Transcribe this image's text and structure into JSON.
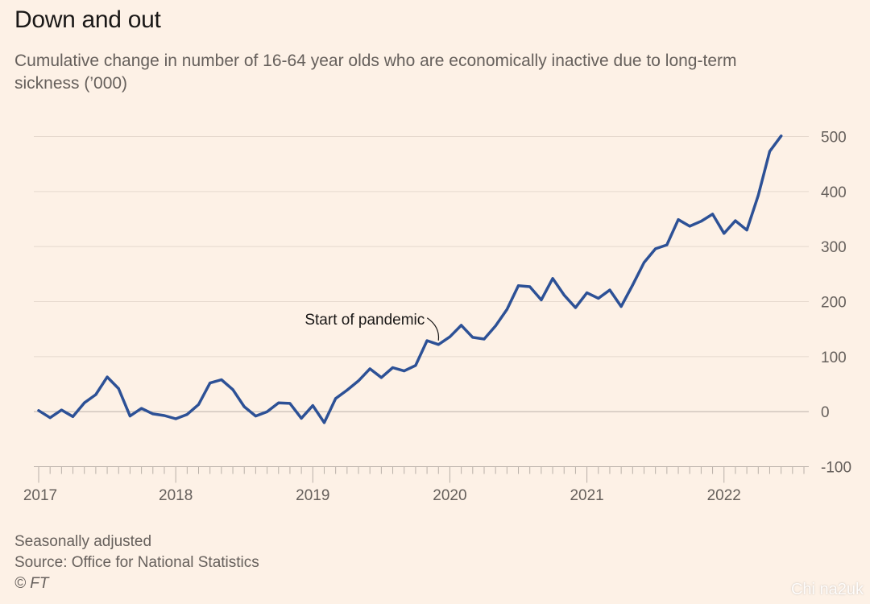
{
  "title": "Down and out",
  "subtitle": "Cumulative change in number of 16-64 year olds who are economically inactive due to long-term sickness (’000)",
  "footer": {
    "note": "Seasonally adjusted",
    "source": "Source: Office for National Statistics",
    "copyright": "© FT"
  },
  "watermark": "Chi na2uk",
  "colors": {
    "line": "#2d5196",
    "background": "#fdf1e6",
    "grid": "#e6d9ce",
    "axis": "#b9b0a8"
  },
  "chart_data": {
    "type": "line",
    "title": "Down and out",
    "subtitle": "Cumulative change in number of 16-64 year olds who are economically inactive due to long-term sickness (’000)",
    "xlabel": "",
    "ylabel": "",
    "ylim": [
      -100,
      500
    ],
    "yticks": [
      500,
      400,
      300,
      200,
      100,
      0,
      -100
    ],
    "xticks": [
      {
        "label": "2017",
        "x": 2017
      },
      {
        "label": "2018",
        "x": 2018
      },
      {
        "label": "2019",
        "x": 2019
      },
      {
        "label": "2020",
        "x": 2020
      },
      {
        "label": "2021",
        "x": 2021
      },
      {
        "label": "2022",
        "x": 2022
      }
    ],
    "xlim": [
      2017,
      2022.5833
    ],
    "grid": true,
    "y_axis_side": "right",
    "series": [
      {
        "values": [
          {
            "x": 2017.0,
            "y": 2
          },
          {
            "x": 2017.0833,
            "y": -11
          },
          {
            "x": 2017.1667,
            "y": 3
          },
          {
            "x": 2017.25,
            "y": -9
          },
          {
            "x": 2017.3333,
            "y": 16
          },
          {
            "x": 2017.4167,
            "y": 31
          },
          {
            "x": 2017.5,
            "y": 63
          },
          {
            "x": 2017.5833,
            "y": 42
          },
          {
            "x": 2017.6667,
            "y": -8
          },
          {
            "x": 2017.75,
            "y": 6
          },
          {
            "x": 2017.8333,
            "y": -4
          },
          {
            "x": 2017.9167,
            "y": -7
          },
          {
            "x": 2018.0,
            "y": -13
          },
          {
            "x": 2018.0833,
            "y": -5
          },
          {
            "x": 2018.1667,
            "y": 13
          },
          {
            "x": 2018.25,
            "y": 52
          },
          {
            "x": 2018.3333,
            "y": 58
          },
          {
            "x": 2018.4167,
            "y": 40
          },
          {
            "x": 2018.5,
            "y": 9
          },
          {
            "x": 2018.5833,
            "y": -8
          },
          {
            "x": 2018.6667,
            "y": 0
          },
          {
            "x": 2018.75,
            "y": 16
          },
          {
            "x": 2018.8333,
            "y": 15
          },
          {
            "x": 2018.9167,
            "y": -12
          },
          {
            "x": 2019.0,
            "y": 11
          },
          {
            "x": 2019.0833,
            "y": -20
          },
          {
            "x": 2019.1667,
            "y": 24
          },
          {
            "x": 2019.25,
            "y": 39
          },
          {
            "x": 2019.3333,
            "y": 56
          },
          {
            "x": 2019.4167,
            "y": 78
          },
          {
            "x": 2019.5,
            "y": 62
          },
          {
            "x": 2019.5833,
            "y": 80
          },
          {
            "x": 2019.6667,
            "y": 74
          },
          {
            "x": 2019.75,
            "y": 84
          },
          {
            "x": 2019.8333,
            "y": 129
          },
          {
            "x": 2019.9167,
            "y": 122
          },
          {
            "x": 2020.0,
            "y": 136
          },
          {
            "x": 2020.0833,
            "y": 157
          },
          {
            "x": 2020.1667,
            "y": 135
          },
          {
            "x": 2020.25,
            "y": 132
          },
          {
            "x": 2020.3333,
            "y": 156
          },
          {
            "x": 2020.4167,
            "y": 186
          },
          {
            "x": 2020.5,
            "y": 229
          },
          {
            "x": 2020.5833,
            "y": 227
          },
          {
            "x": 2020.6667,
            "y": 203
          },
          {
            "x": 2020.75,
            "y": 242
          },
          {
            "x": 2020.8333,
            "y": 212
          },
          {
            "x": 2020.9167,
            "y": 189
          },
          {
            "x": 2021.0,
            "y": 216
          },
          {
            "x": 2021.0833,
            "y": 206
          },
          {
            "x": 2021.1667,
            "y": 221
          },
          {
            "x": 2021.25,
            "y": 191
          },
          {
            "x": 2021.3333,
            "y": 230
          },
          {
            "x": 2021.4167,
            "y": 271
          },
          {
            "x": 2021.5,
            "y": 296
          },
          {
            "x": 2021.5833,
            "y": 303
          },
          {
            "x": 2021.6667,
            "y": 349
          },
          {
            "x": 2021.75,
            "y": 337
          },
          {
            "x": 2021.8333,
            "y": 346
          },
          {
            "x": 2021.9167,
            "y": 359
          },
          {
            "x": 2022.0,
            "y": 324
          },
          {
            "x": 2022.0833,
            "y": 347
          },
          {
            "x": 2022.1667,
            "y": 330
          },
          {
            "x": 2022.25,
            "y": 393
          },
          {
            "x": 2022.3333,
            "y": 473
          },
          {
            "x": 2022.4167,
            "y": 501
          }
        ]
      }
    ],
    "annotations": [
      {
        "text": "Start of pandemic",
        "x": 2019.9167,
        "y": 122
      }
    ]
  }
}
